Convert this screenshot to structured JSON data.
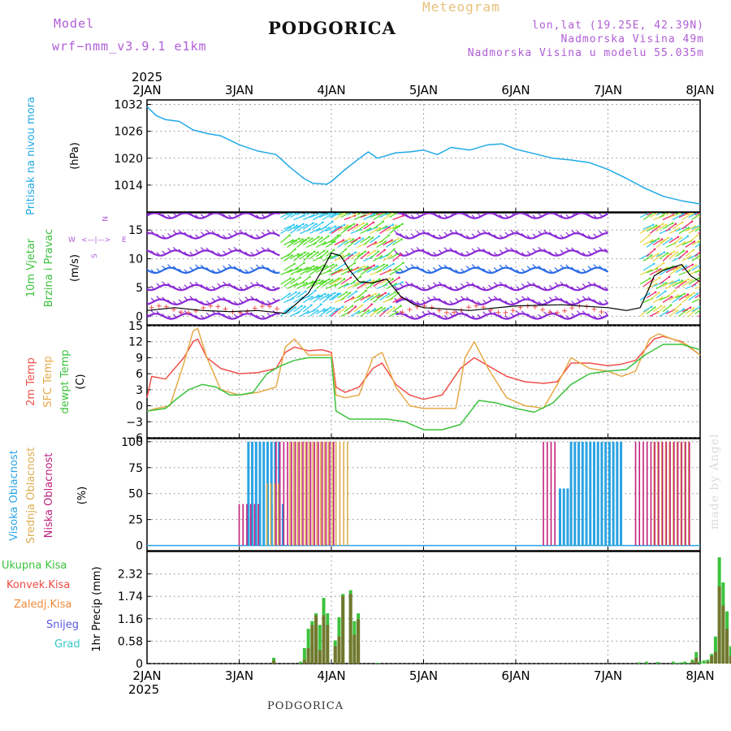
{
  "header": {
    "model_label": "Model",
    "model_name": "wrf−nmm_v3.9.1  e1km",
    "title": "PODGORICA",
    "meteogram": "Meteogram",
    "lonlat": "lon,lat (19.25E, 42.39N)",
    "altitude": "Nadmorska Visina 49m",
    "model_altitude": "Nadmorska Visina u modelu 55.035m"
  },
  "footer": {
    "station": "PODGORICA",
    "made_by": "made by Angel"
  },
  "time_axis": {
    "year_top": "2025",
    "year_bottom": "2025",
    "labels": [
      "2JAN",
      "3JAN",
      "4JAN",
      "5JAN",
      "6JAN",
      "7JAN",
      "8JAN"
    ],
    "days": [
      0,
      1,
      2,
      3,
      4,
      5,
      6
    ]
  },
  "colors": {
    "pressure": "#22a9e6",
    "temp2m": "#f0504a",
    "sfc_temp": "#e6aa48",
    "dewpt": "#3cc23c",
    "high_cloud": "#2aa3e3",
    "mid_cloud": "#dcae50",
    "low_cloud": "#c2207e",
    "total_precip": "#3cc23c",
    "conv_precip": "#f04a42",
    "frz_precip": "#f08a3a",
    "snow": "#5a5ae6",
    "graupel": "#36c8c8",
    "wind_barb_slow": "#8a2ad6",
    "wind_barb_mid": "#2a6ae6",
    "wind_arrow_light": "#33c8f0",
    "wind_arrow_green": "#55dd2a",
    "wind_arrow_yellow": "#e6d84a",
    "wind_arrow_red": "#f02a6a"
  },
  "panel_labels": {
    "pressure": {
      "name": "Pritisak na nivou mora",
      "unit": "(hPa)"
    },
    "wind": {
      "line1": "10m Vjetar",
      "line2": "Brzina i Pravac",
      "unit": "(m/s)",
      "compass_n": "N",
      "compass_w": "W",
      "compass_e": "E",
      "compass_s": "S",
      "compass_center": "<—|—>"
    },
    "temp": {
      "l1": "2m Temp",
      "l2": "SFC Temp",
      "l3": "dewpt Temp",
      "unit": "(C)"
    },
    "cloud": {
      "l1": "Visoka Oblacnost",
      "l2": "Srednja Oblacnost",
      "l3": "Niska Oblacnost",
      "unit": "(%)"
    },
    "precip": {
      "l1": "Ukupna Kisa",
      "l2": "Konvek.Kisa",
      "l3": "Zaledj.Kisa",
      "l4": "Snijeg",
      "l5": "Grad",
      "unit": "1hr Precip (mm)"
    }
  },
  "chart_data": [
    {
      "type": "line",
      "name": "pressure",
      "ylabel": "(hPa)",
      "ylim": [
        1008,
        1033
      ],
      "yticks": [
        1014,
        1020,
        1026,
        1032
      ],
      "grid": true,
      "x_unit": "days since 2JAN 00UTC",
      "series": [
        {
          "name": "Pritisak na nivou mora",
          "x": [
            0,
            0.1,
            0.2,
            0.35,
            0.5,
            0.65,
            0.8,
            1.0,
            1.2,
            1.4,
            1.55,
            1.7,
            1.8,
            1.95,
            2.0,
            2.15,
            2.3,
            2.4,
            2.5,
            2.7,
            2.85,
            3.0,
            3.15,
            3.3,
            3.5,
            3.7,
            3.85,
            4.0,
            4.2,
            4.4,
            4.6,
            4.8,
            5.0,
            5.2,
            5.4,
            5.6,
            5.8,
            6.0
          ],
          "values": [
            1031.5,
            1029.5,
            1028.6,
            1028.2,
            1026.3,
            1025.5,
            1025.0,
            1023.0,
            1021.6,
            1020.8,
            1018.0,
            1015.5,
            1014.4,
            1014.2,
            1014.8,
            1017.5,
            1019.9,
            1021.4,
            1020.0,
            1021.2,
            1021.4,
            1021.8,
            1020.8,
            1022.4,
            1021.8,
            1023.0,
            1023.2,
            1022.0,
            1021.0,
            1020.0,
            1019.6,
            1019.0,
            1017.5,
            1015.5,
            1013.3,
            1011.5,
            1010.5,
            1009.8
          ]
        }
      ]
    },
    {
      "type": "line",
      "name": "wind",
      "ylabel": "(m/s)",
      "ylim": [
        -1.5,
        18
      ],
      "yticks": [
        0,
        5,
        10,
        15
      ],
      "grid": true,
      "series": [
        {
          "name": "wind speed",
          "x": [
            0.0,
            0.3,
            0.6,
            0.9,
            1.2,
            1.5,
            1.75,
            1.9,
            2.0,
            2.1,
            2.2,
            2.3,
            2.45,
            2.6,
            2.75,
            2.9,
            3.0,
            3.5,
            4.0,
            4.5,
            5.0,
            5.2,
            5.35,
            5.45,
            5.5,
            5.6,
            5.7,
            5.8,
            5.9,
            6.0
          ],
          "values": [
            1.0,
            1.5,
            1.0,
            0.8,
            1.0,
            0.5,
            4.0,
            8.0,
            11.0,
            10.5,
            8.0,
            6.0,
            5.8,
            6.5,
            3.5,
            2.0,
            1.5,
            1.0,
            1.8,
            2.0,
            1.5,
            1.0,
            1.5,
            5.0,
            7.0,
            8.0,
            8.5,
            9.0,
            7.0,
            6.0
          ]
        }
      ]
    },
    {
      "type": "line",
      "name": "temperature",
      "ylabel": "(C)",
      "ylim": [
        -6,
        15
      ],
      "yticks": [
        -6,
        -3,
        0,
        3,
        6,
        9,
        12,
        15
      ],
      "grid": true,
      "series": [
        {
          "name": "2m Temp",
          "x": [
            0.0,
            0.05,
            0.2,
            0.4,
            0.5,
            0.55,
            0.65,
            0.8,
            1.0,
            1.2,
            1.4,
            1.5,
            1.6,
            1.75,
            1.9,
            2.0,
            2.05,
            2.15,
            2.3,
            2.45,
            2.55,
            2.7,
            2.85,
            3.0,
            3.2,
            3.4,
            3.55,
            3.7,
            3.9,
            4.1,
            4.3,
            4.45,
            4.6,
            4.8,
            5.0,
            5.15,
            5.3,
            5.5,
            5.6,
            5.8,
            6.0
          ],
          "values": [
            1.5,
            5.5,
            5.0,
            9.0,
            12.0,
            12.5,
            9.0,
            7.0,
            6.0,
            6.2,
            7.0,
            10.0,
            11.0,
            10.3,
            10.5,
            10.0,
            3.5,
            2.5,
            3.5,
            7.0,
            8.0,
            4.0,
            2.0,
            1.2,
            2.0,
            7.0,
            9.0,
            7.5,
            5.5,
            4.5,
            4.2,
            4.5,
            8.0,
            8.0,
            7.5,
            7.8,
            8.5,
            12.5,
            13.0,
            12.0,
            9.5
          ]
        },
        {
          "name": "SFC Temp",
          "x": [
            0.0,
            0.1,
            0.25,
            0.4,
            0.5,
            0.55,
            0.65,
            0.8,
            1.0,
            1.2,
            1.4,
            1.5,
            1.6,
            1.75,
            1.9,
            2.0,
            2.05,
            2.15,
            2.3,
            2.45,
            2.55,
            2.7,
            2.85,
            3.0,
            3.2,
            3.35,
            3.45,
            3.55,
            3.7,
            3.9,
            4.1,
            4.2,
            4.3,
            4.45,
            4.6,
            4.8,
            5.0,
            5.15,
            5.3,
            5.45,
            5.55,
            5.7,
            5.85,
            6.0
          ],
          "values": [
            -1.0,
            -0.5,
            0.0,
            8.0,
            14.0,
            14.5,
            9.0,
            3.0,
            2.0,
            2.5,
            3.5,
            11.0,
            12.5,
            9.5,
            9.5,
            9.5,
            2.0,
            1.5,
            2.0,
            9.0,
            10.0,
            3.5,
            0.0,
            -0.5,
            -0.5,
            -0.5,
            9.0,
            12.0,
            7.0,
            1.5,
            0.0,
            -0.2,
            -0.5,
            4.0,
            9.0,
            7.0,
            6.5,
            5.5,
            6.5,
            12.5,
            13.5,
            12.5,
            11.5,
            9.5
          ]
        },
        {
          "name": "dewpt Temp",
          "x": [
            0.0,
            0.2,
            0.3,
            0.45,
            0.6,
            0.75,
            0.9,
            1.0,
            1.15,
            1.3,
            1.45,
            1.6,
            1.75,
            1.9,
            2.0,
            2.05,
            2.2,
            2.4,
            2.6,
            2.8,
            3.0,
            3.2,
            3.4,
            3.6,
            3.8,
            4.0,
            4.2,
            4.4,
            4.6,
            4.8,
            5.0,
            5.2,
            5.4,
            5.6,
            5.8,
            6.0
          ],
          "values": [
            -1.0,
            -0.5,
            1.0,
            3.0,
            4.0,
            3.5,
            2.0,
            2.0,
            2.5,
            6.0,
            7.5,
            8.5,
            9.0,
            9.0,
            9.0,
            -1.0,
            -2.5,
            -2.5,
            -2.5,
            -3.0,
            -4.5,
            -4.5,
            -3.5,
            1.0,
            0.5,
            -0.5,
            -1.2,
            0.5,
            4.0,
            6.0,
            6.5,
            6.8,
            9.5,
            11.5,
            11.5,
            10.5
          ]
        }
      ]
    },
    {
      "type": "bar",
      "name": "cloud",
      "ylabel": "(%)",
      "ylim": [
        -5,
        103
      ],
      "yticks": [
        0,
        25,
        50,
        75,
        100
      ],
      "grid": true,
      "series": [
        {
          "name": "Visoka Oblacnost",
          "intervals": [
            [
              1.1,
              1.45,
              100
            ],
            [
              1.35,
              1.5,
              40
            ],
            [
              4.48,
              4.6,
              55
            ],
            [
              4.6,
              5.15,
              100
            ]
          ]
        },
        {
          "name": "Srednja Oblacnost",
          "intervals": [
            [
              1.3,
              1.45,
              60
            ],
            [
              1.55,
              2.2,
              100
            ],
            [
              5.5,
              5.9,
              100
            ]
          ]
        },
        {
          "name": "Niska Oblacnost",
          "intervals": [
            [
              1.0,
              1.25,
              40
            ],
            [
              1.4,
              2.05,
              100
            ],
            [
              4.3,
              4.45,
              100
            ],
            [
              5.3,
              5.9,
              100
            ]
          ]
        }
      ]
    },
    {
      "type": "bar",
      "name": "precip",
      "ylabel": "1hr Precip (mm)",
      "ylim": [
        0,
        2.9
      ],
      "yticks": [
        0,
        0.58,
        1.16,
        1.74,
        2.32
      ],
      "grid": true,
      "bar_hours": [
        33,
        40,
        41,
        42,
        43,
        44,
        45,
        46,
        47,
        49,
        50,
        51,
        53,
        54,
        55,
        60,
        128,
        130,
        133,
        137,
        138,
        139,
        140,
        141,
        142,
        143,
        144,
        145,
        146,
        147,
        148,
        149,
        150,
        151,
        152,
        153,
        154,
        155,
        156,
        157,
        158,
        159,
        160,
        161,
        162,
        163,
        164
      ],
      "series": [
        {
          "name": "Ukupna Kisa",
          "values": [
            0.15,
            0.05,
            0.4,
            0.9,
            1.1,
            1.3,
            1.0,
            1.7,
            1.3,
            0.6,
            1.2,
            1.8,
            1.9,
            1.1,
            1.3,
            0.02,
            0.03,
            0.05,
            0.04,
            0.05,
            0.02,
            0.03,
            0.05,
            0.02,
            0.1,
            0.3,
            0.05,
            0.08,
            0.1,
            0.25,
            0.7,
            2.75,
            2.1,
            1.35,
            0.45,
            0.6,
            0.8,
            1.05,
            0.75,
            0.4,
            0.3,
            0.55,
            0.5,
            0.3,
            0.25,
            0.3,
            0.35
          ]
        },
        {
          "name": "Konvek.Kisa",
          "values": [
            0.08,
            0.0,
            0.1,
            0.4,
            1.0,
            1.25,
            0.35,
            1.25,
            1.0,
            0.45,
            0.7,
            1.75,
            1.8,
            0.75,
            1.15,
            0.0,
            0.0,
            0.0,
            0.0,
            0.0,
            0.0,
            0.0,
            0.0,
            0.0,
            0.05,
            0.15,
            0.0,
            0.0,
            0.05,
            0.2,
            0.3,
            2.0,
            1.5,
            0.9,
            0.2,
            0.1,
            0.2,
            0.3,
            0.1,
            0.05,
            0.05,
            0.1,
            0.1,
            0.05,
            0.05,
            0.05,
            0.05
          ]
        }
      ]
    }
  ]
}
